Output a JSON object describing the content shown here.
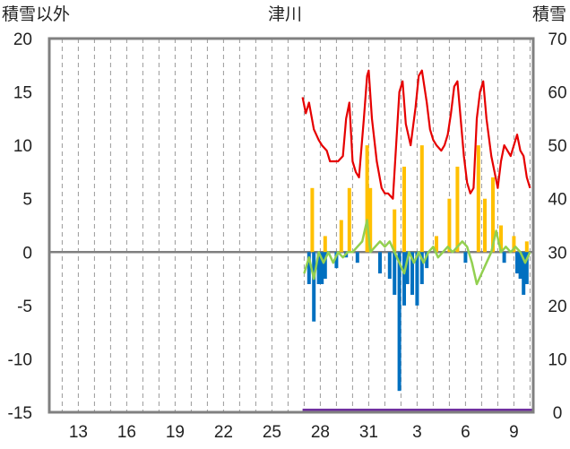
{
  "chart_data": {
    "type": "bar",
    "title": "津川",
    "left_axis_label": "積雪以外",
    "right_axis_label": "積雪",
    "left_ylim": [
      -15,
      20
    ],
    "right_ylim": [
      0,
      70
    ],
    "left_ticks": [
      "20",
      "15",
      "10",
      "5",
      "0",
      "-5",
      "-10",
      "-15"
    ],
    "right_ticks": [
      "70",
      "60",
      "50",
      "40",
      "30",
      "20",
      "10",
      "0"
    ],
    "x_ticks": [
      "13",
      "16",
      "19",
      "22",
      "25",
      "28",
      "31",
      "3",
      "6",
      "9"
    ],
    "x_tick_days": [
      13,
      16,
      19,
      22,
      25,
      28,
      31,
      34,
      37,
      40
    ],
    "x_range": [
      11.2,
      41.2
    ],
    "grid": "vertical-dashed",
    "colors": {
      "snow_depth": "#e60000",
      "snowfall": "#ffc000",
      "temp_drop": "#0070c0",
      "temperature": "#92d050",
      "baseline": "#7f7f7f",
      "bottom_band": "#7030a0"
    },
    "series": [
      {
        "type": "line",
        "axis": "right",
        "color": "#e60000",
        "points": [
          [
            26.9,
            59
          ],
          [
            27.1,
            56
          ],
          [
            27.3,
            58
          ],
          [
            27.6,
            53
          ],
          [
            27.9,
            51
          ],
          [
            28.1,
            50
          ],
          [
            28.4,
            49
          ],
          [
            28.6,
            47
          ],
          [
            28.9,
            47
          ],
          [
            29.1,
            47
          ],
          [
            29.4,
            48
          ],
          [
            29.6,
            55
          ],
          [
            29.8,
            58
          ],
          [
            30.0,
            47
          ],
          [
            30.2,
            45
          ],
          [
            30.4,
            44
          ],
          [
            30.7,
            55
          ],
          [
            30.9,
            63
          ],
          [
            31.0,
            64
          ],
          [
            31.2,
            55
          ],
          [
            31.5,
            47
          ],
          [
            31.8,
            42
          ],
          [
            32.0,
            41
          ],
          [
            32.2,
            41
          ],
          [
            32.5,
            40
          ],
          [
            32.7,
            50
          ],
          [
            32.9,
            60
          ],
          [
            33.1,
            62
          ],
          [
            33.3,
            54
          ],
          [
            33.6,
            50
          ],
          [
            33.9,
            57
          ],
          [
            34.1,
            63
          ],
          [
            34.3,
            64
          ],
          [
            34.6,
            58
          ],
          [
            34.8,
            53
          ],
          [
            35.0,
            51
          ],
          [
            35.2,
            50
          ],
          [
            35.5,
            49
          ],
          [
            35.7,
            50
          ],
          [
            35.9,
            52
          ],
          [
            36.1,
            56
          ],
          [
            36.3,
            61
          ],
          [
            36.5,
            62
          ],
          [
            36.7,
            55
          ],
          [
            36.9,
            48
          ],
          [
            37.1,
            43
          ],
          [
            37.3,
            41
          ],
          [
            37.5,
            42
          ],
          [
            37.7,
            55
          ],
          [
            37.9,
            60
          ],
          [
            38.1,
            62
          ],
          [
            38.3,
            55
          ],
          [
            38.6,
            48
          ],
          [
            38.8,
            45
          ],
          [
            39.0,
            42
          ],
          [
            39.2,
            47
          ],
          [
            39.4,
            50
          ],
          [
            39.6,
            49
          ],
          [
            39.8,
            48
          ],
          [
            40.0,
            50
          ],
          [
            40.2,
            52
          ],
          [
            40.4,
            49
          ],
          [
            40.6,
            48
          ],
          [
            40.8,
            44
          ],
          [
            41.0,
            42
          ]
        ]
      },
      {
        "type": "bar",
        "axis": "left",
        "color": "#ffc000",
        "points": [
          [
            27.5,
            6
          ],
          [
            28.3,
            1.5
          ],
          [
            29.3,
            3
          ],
          [
            29.8,
            6
          ],
          [
            30.9,
            10
          ],
          [
            31.1,
            6
          ],
          [
            32.6,
            4
          ],
          [
            33.2,
            8
          ],
          [
            34.3,
            10
          ],
          [
            35.2,
            1.5
          ],
          [
            36.0,
            5
          ],
          [
            36.5,
            8
          ],
          [
            37.8,
            10
          ],
          [
            38.2,
            5
          ],
          [
            38.7,
            7
          ],
          [
            39.2,
            2.5
          ],
          [
            40.0,
            1.5
          ],
          [
            40.8,
            1
          ]
        ]
      },
      {
        "type": "bar",
        "axis": "left",
        "color": "#0070c0",
        "points": [
          [
            27.3,
            -3
          ],
          [
            27.6,
            -6.5
          ],
          [
            27.9,
            -3
          ],
          [
            28.1,
            -3
          ],
          [
            28.3,
            -2.5
          ],
          [
            29.0,
            -1.5
          ],
          [
            29.6,
            -0.5
          ],
          [
            30.3,
            -1
          ],
          [
            31.7,
            -2
          ],
          [
            32.3,
            -2.5
          ],
          [
            32.6,
            -4
          ],
          [
            32.9,
            -13
          ],
          [
            33.2,
            -5
          ],
          [
            33.4,
            -3
          ],
          [
            33.7,
            -4
          ],
          [
            34.0,
            -5
          ],
          [
            34.3,
            -3
          ],
          [
            34.6,
            -1.5
          ],
          [
            37.0,
            -1
          ],
          [
            39.4,
            -1
          ],
          [
            40.2,
            -2
          ],
          [
            40.4,
            -2.5
          ],
          [
            40.6,
            -4
          ],
          [
            40.8,
            -3
          ]
        ]
      },
      {
        "type": "line",
        "axis": "left",
        "color": "#92d050",
        "points": [
          [
            27.0,
            -2
          ],
          [
            27.3,
            -0.5
          ],
          [
            27.6,
            -2.5
          ],
          [
            27.9,
            0
          ],
          [
            28.2,
            -1
          ],
          [
            28.5,
            0
          ],
          [
            28.8,
            -1
          ],
          [
            29.1,
            0
          ],
          [
            29.4,
            -0.5
          ],
          [
            29.7,
            0
          ],
          [
            30.0,
            0
          ],
          [
            30.3,
            0.5
          ],
          [
            30.6,
            1
          ],
          [
            30.9,
            3
          ],
          [
            31.1,
            0
          ],
          [
            31.4,
            0.5
          ],
          [
            31.7,
            1
          ],
          [
            32.0,
            0.5
          ],
          [
            32.3,
            1
          ],
          [
            32.6,
            0
          ],
          [
            32.9,
            -1
          ],
          [
            33.2,
            -2
          ],
          [
            33.5,
            0
          ],
          [
            33.8,
            -1
          ],
          [
            34.1,
            0
          ],
          [
            34.4,
            -1
          ],
          [
            34.7,
            0
          ],
          [
            35.0,
            0.5
          ],
          [
            35.3,
            -0.5
          ],
          [
            35.6,
            0
          ],
          [
            35.9,
            0.5
          ],
          [
            36.2,
            0
          ],
          [
            36.5,
            0.5
          ],
          [
            36.8,
            1
          ],
          [
            37.1,
            0.5
          ],
          [
            37.4,
            -1
          ],
          [
            37.7,
            -3
          ],
          [
            38.0,
            -2
          ],
          [
            38.3,
            -1
          ],
          [
            38.6,
            0
          ],
          [
            38.9,
            2
          ],
          [
            39.2,
            0
          ],
          [
            39.5,
            0.5
          ],
          [
            39.8,
            0
          ],
          [
            40.1,
            0.5
          ],
          [
            40.4,
            0
          ],
          [
            40.7,
            -1
          ],
          [
            41.0,
            0
          ]
        ]
      }
    ]
  }
}
